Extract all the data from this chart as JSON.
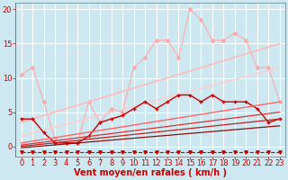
{
  "background_color": "#cde8f0",
  "grid_color": "#ffffff",
  "xlabel": "Vent moyen/en rafales ( km/h )",
  "xlabel_color": "#cc0000",
  "xlabel_fontsize": 7,
  "tick_color": "#cc0000",
  "tick_fontsize": 6,
  "xlim": [
    -0.5,
    23.5
  ],
  "ylim": [
    -1.5,
    21
  ],
  "yticks": [
    0,
    5,
    10,
    15,
    20
  ],
  "xticks": [
    0,
    1,
    2,
    3,
    4,
    5,
    6,
    7,
    8,
    9,
    10,
    11,
    12,
    13,
    14,
    15,
    16,
    17,
    18,
    19,
    20,
    21,
    22,
    23
  ],
  "lines": [
    {
      "x": [
        0,
        1,
        2,
        3,
        4,
        5,
        6,
        7,
        8,
        9,
        10,
        11,
        12,
        13,
        14,
        15,
        16,
        17,
        18,
        19,
        20,
        21,
        22,
        23
      ],
      "y": [
        10.5,
        11.5,
        6.5,
        1.0,
        0.5,
        0.5,
        6.5,
        3.5,
        5.5,
        5.0,
        11.5,
        13.0,
        15.5,
        15.5,
        13.0,
        20.0,
        18.5,
        15.5,
        15.5,
        16.5,
        15.5,
        11.5,
        11.5,
        6.5
      ],
      "color": "#ffaaaa",
      "linewidth": 0.8,
      "marker": "D",
      "markersize": 2.0,
      "linestyle": "-"
    },
    {
      "x": [
        0,
        23
      ],
      "y": [
        3.5,
        15.0
      ],
      "color": "#ffbbbb",
      "linewidth": 1.2,
      "marker": null,
      "markersize": 0,
      "linestyle": "-"
    },
    {
      "x": [
        0,
        23
      ],
      "y": [
        1.5,
        11.5
      ],
      "color": "#ffcccc",
      "linewidth": 1.0,
      "marker": null,
      "markersize": 0,
      "linestyle": "-"
    },
    {
      "x": [
        0,
        1,
        2,
        3,
        4,
        5,
        6,
        7,
        8,
        9,
        10,
        11,
        12,
        13,
        14,
        15,
        16,
        17,
        18,
        19,
        20,
        21,
        22,
        23
      ],
      "y": [
        4.0,
        4.0,
        2.0,
        0.5,
        0.5,
        0.5,
        1.5,
        3.5,
        4.0,
        4.5,
        5.5,
        6.5,
        5.5,
        6.5,
        7.5,
        7.5,
        6.5,
        7.5,
        6.5,
        6.5,
        6.5,
        5.5,
        3.5,
        4.0
      ],
      "color": "#cc0000",
      "linewidth": 1.0,
      "marker": "+",
      "markersize": 3.5,
      "linestyle": "-"
    },
    {
      "x": [
        0,
        23
      ],
      "y": [
        0.5,
        6.5
      ],
      "color": "#ff6666",
      "linewidth": 1.0,
      "marker": null,
      "markersize": 0,
      "linestyle": "-"
    },
    {
      "x": [
        0,
        23
      ],
      "y": [
        0.2,
        5.0
      ],
      "color": "#dd3333",
      "linewidth": 0.9,
      "marker": null,
      "markersize": 0,
      "linestyle": "-"
    },
    {
      "x": [
        0,
        23
      ],
      "y": [
        0.0,
        4.0
      ],
      "color": "#bb2222",
      "linewidth": 0.9,
      "marker": null,
      "markersize": 0,
      "linestyle": "-"
    },
    {
      "x": [
        0,
        23
      ],
      "y": [
        -0.2,
        3.0
      ],
      "color": "#881111",
      "linewidth": 0.9,
      "marker": null,
      "markersize": 0,
      "linestyle": "-"
    },
    {
      "x": [
        0,
        1,
        2,
        3,
        4,
        5,
        6,
        7,
        8,
        9,
        10,
        11,
        12,
        13,
        14,
        15,
        16,
        17,
        18,
        19,
        20,
        21,
        22,
        23
      ],
      "y": [
        -0.8,
        -0.8,
        -0.8,
        -0.8,
        -0.8,
        -0.8,
        -0.8,
        -0.8,
        -0.8,
        -0.8,
        -0.8,
        -0.8,
        -0.8,
        -0.8,
        -0.8,
        -0.8,
        -0.8,
        -0.8,
        -0.8,
        -0.8,
        -0.8,
        -0.8,
        -0.8,
        -0.8
      ],
      "color": "#cc0000",
      "linewidth": 0.8,
      "marker": "v",
      "markersize": 2.5,
      "linestyle": "--"
    }
  ]
}
